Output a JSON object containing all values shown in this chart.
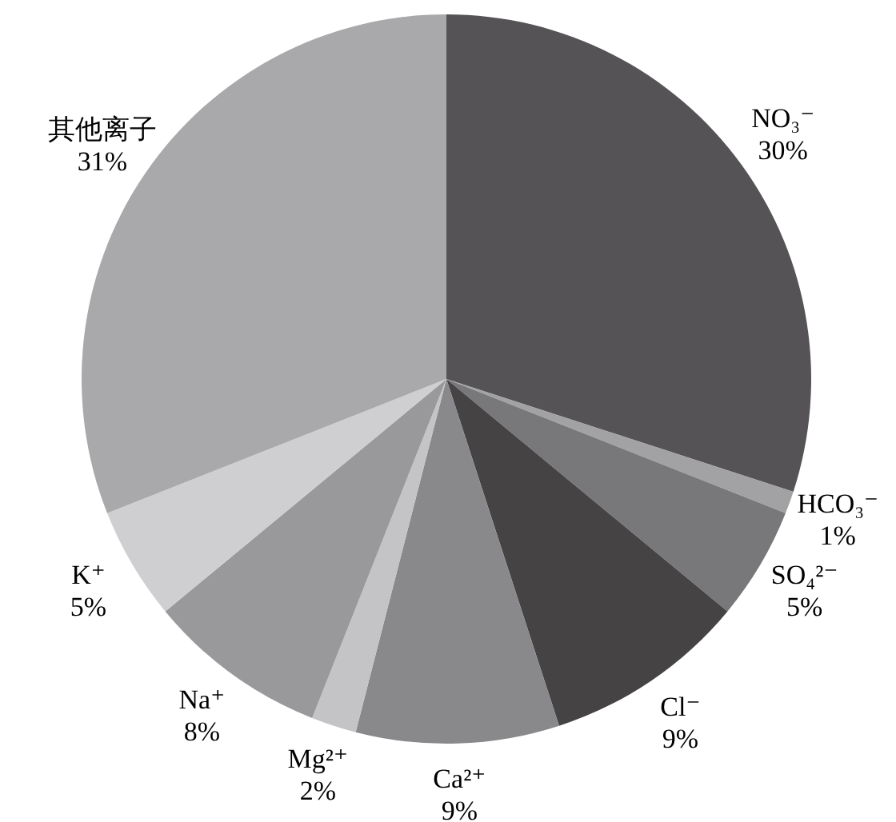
{
  "chart_data": {
    "type": "pie",
    "categories": [
      "NO₃⁻",
      "HCO₃⁻",
      "SO₄²⁻",
      "Cl⁻",
      "Ca²⁺",
      "Mg²⁺",
      "Na⁺",
      "K⁺",
      "其他离子"
    ],
    "values": [
      30,
      1,
      5,
      9,
      9,
      2,
      8,
      5,
      31
    ],
    "colors": [
      "#555356",
      "#a2a1a4",
      "#78777a",
      "#464345",
      "#89888b",
      "#c4c3c6",
      "#99989b",
      "#cfced1",
      "#a9a8ab"
    ],
    "value_labels": [
      "30%",
      "1%",
      "5%",
      "9%",
      "9%",
      "2%",
      "8%",
      "5%",
      "31%"
    ],
    "legend": false
  }
}
